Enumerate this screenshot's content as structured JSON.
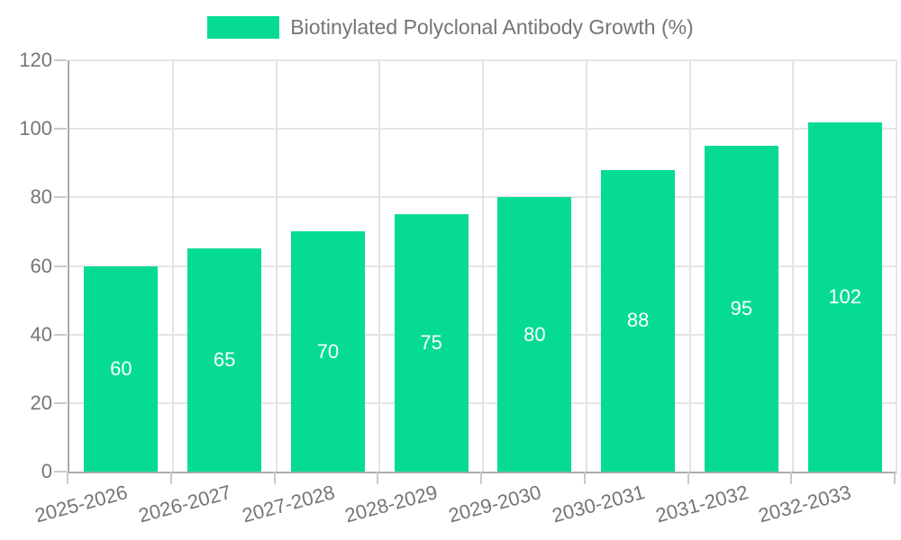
{
  "legend": {
    "label": "Biotinylated Polyclonal Antibody Growth (%)"
  },
  "chart_data": {
    "type": "bar",
    "title": "Biotinylated Polyclonal Antibody Growth (%)",
    "categories": [
      "2025-2026",
      "2026-2027",
      "2027-2028",
      "2028-2029",
      "2029-2030",
      "2030-2031",
      "2031-2032",
      "2032-2033"
    ],
    "series": [
      {
        "name": "Biotinylated Polyclonal Antibody Growth (%)",
        "values": [
          60,
          65,
          70,
          75,
          80,
          88,
          95,
          102
        ]
      }
    ],
    "xlabel": "",
    "ylabel": "",
    "ylim": [
      0,
      120
    ],
    "yticks": [
      0,
      20,
      40,
      60,
      80,
      100,
      120
    ],
    "grid": "both",
    "legend_position": "top-center",
    "bar_color": "#05db94",
    "bar_value_label_color": "#ffffff",
    "axis_text_color": "#757575",
    "gridline_color": "#e4e4e4",
    "axis_line_color": "#ababab",
    "x_label_rotation_deg": -15
  }
}
